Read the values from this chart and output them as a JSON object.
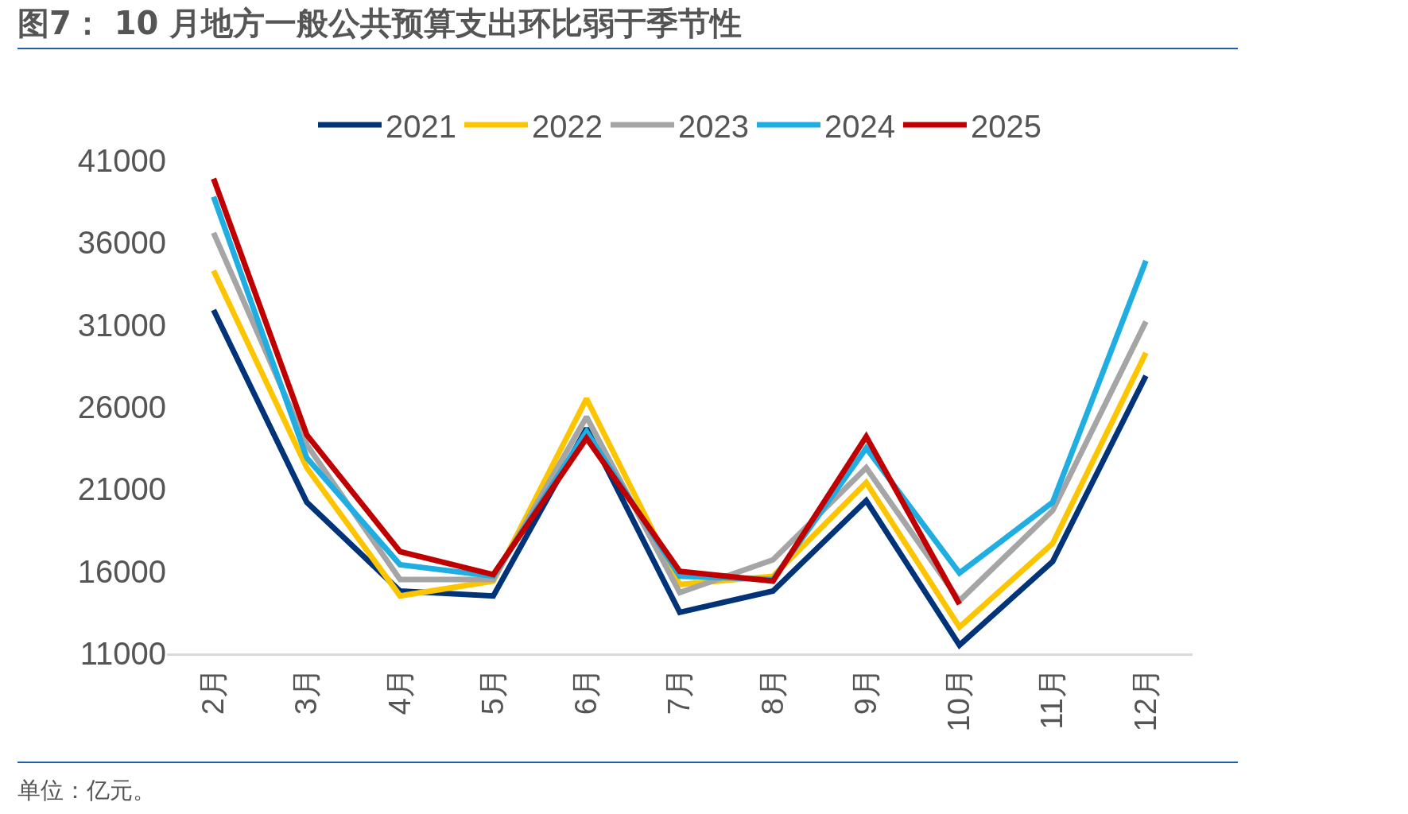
{
  "chart_data": {
    "type": "line",
    "title": "图7： 10 月地方一般公共预算支出环比弱于季节性",
    "categories": [
      "2月",
      "3月",
      "4月",
      "5月",
      "6月",
      "7月",
      "8月",
      "9月",
      "10月",
      "11月",
      "12月"
    ],
    "series": [
      {
        "name": "2021",
        "color": "#003378",
        "values": [
          31900,
          20200,
          14800,
          14500,
          24700,
          13500,
          14800,
          20300,
          11500,
          16600,
          27900
        ]
      },
      {
        "name": "2022",
        "color": "#fdc500",
        "values": [
          34300,
          22300,
          14500,
          15400,
          26500,
          15200,
          15700,
          21400,
          12600,
          17700,
          29300
        ]
      },
      {
        "name": "2023",
        "color": "#a5a5a5",
        "values": [
          36600,
          23700,
          15500,
          15500,
          25400,
          14700,
          16700,
          22300,
          14200,
          19700,
          31200
        ]
      },
      {
        "name": "2024",
        "color": "#1fade2",
        "values": [
          38800,
          22900,
          16400,
          15700,
          24500,
          15700,
          15500,
          23500,
          15900,
          20200,
          34900
        ]
      },
      {
        "name": "2025",
        "color": "#c00000",
        "values": [
          39900,
          24300,
          17200,
          15800,
          24100,
          16000,
          15400,
          24200,
          14000,
          null,
          null
        ]
      }
    ],
    "ylim": [
      11000,
      41000
    ],
    "yticks": [
      11000,
      16000,
      21000,
      26000,
      31000,
      36000,
      41000
    ],
    "grid": false,
    "legend": "top",
    "marker": "none",
    "line_style": "solid",
    "annotations": [
      "单位：亿元。"
    ]
  }
}
